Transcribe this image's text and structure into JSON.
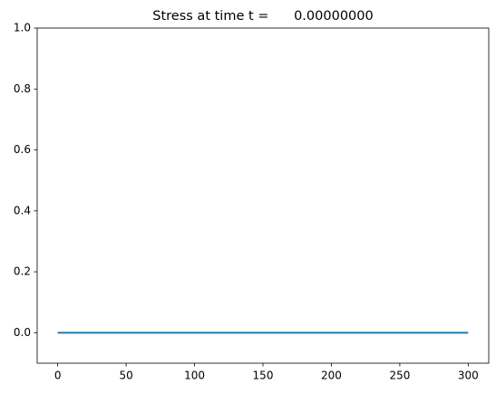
{
  "chart_data": {
    "type": "line",
    "title": "Stress at time t =      0.00000000",
    "x": [
      0,
      300
    ],
    "series": [
      {
        "color": "#1f77b4",
        "values": [
          0,
          0
        ]
      }
    ],
    "xlim": [
      -15,
      315
    ],
    "xticks": [
      0,
      50,
      100,
      150,
      200,
      250,
      300
    ],
    "ylim": [
      -0.1,
      1.0
    ],
    "yticks": [
      {
        "value": 0,
        "label": "0.0"
      },
      0.2,
      0.4,
      0.6,
      0.8,
      {
        "value": 1,
        "label": "1.0"
      }
    ]
  }
}
